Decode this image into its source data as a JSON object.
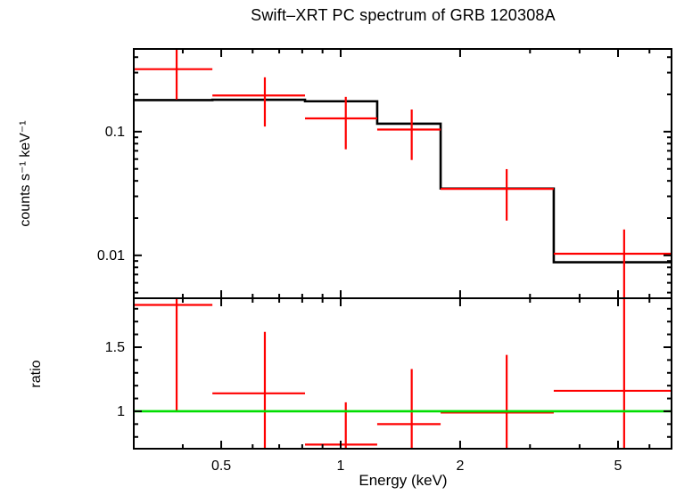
{
  "title": "Swift–XRT PC spectrum of GRB 120308A",
  "chart_data": {
    "type": "line",
    "subtype": "x-ray-spectrum-with-ratio-panel",
    "title": "Swift–XRT PC spectrum of GRB 120308A",
    "xlabel": "Energy (keV)",
    "x_scale": "log",
    "x_range": [
      0.301,
      6.82
    ],
    "x_major_ticks": [
      {
        "value": 0.5,
        "label": "0.5"
      },
      {
        "value": 1,
        "label": "1"
      },
      {
        "value": 2,
        "label": "2"
      },
      {
        "value": 5,
        "label": "5"
      }
    ],
    "x_minor_ticks": [
      0.4,
      0.6,
      0.7,
      0.8,
      0.9,
      3,
      4,
      6
    ],
    "colors": {
      "data": "#ff0000",
      "model": "#000000",
      "reference_line": "#00dd00",
      "axes": "#000000",
      "background": "#ffffff"
    },
    "panels": [
      {
        "name": "spectrum",
        "ylabel": "counts s⁻¹ keV⁻¹",
        "y_scale": "log",
        "y_range": [
          0.0045,
          0.466
        ],
        "y_major_ticks": [
          {
            "value": 0.1,
            "label": "0.1"
          },
          {
            "value": 0.01,
            "label": "0.01"
          }
        ],
        "y_minor_ticks": [
          0.4,
          0.3,
          0.2,
          0.09,
          0.08,
          0.07,
          0.06,
          0.05,
          0.04,
          0.03,
          0.02,
          0.009,
          0.008,
          0.007,
          0.006,
          0.005
        ]
      },
      {
        "name": "ratio",
        "ylabel": "ratio",
        "y_scale": "linear",
        "y_range": [
          0.708,
          1.882
        ],
        "y_major_ticks": [
          {
            "value": 1,
            "label": "1"
          },
          {
            "value": 1.5,
            "label": "1.5"
          }
        ],
        "y_minor_ticks": [
          0.8,
          0.9,
          1.1,
          1.2,
          1.3,
          1.4,
          1.6,
          1.7,
          1.8
        ],
        "reference_line_y": 1
      }
    ],
    "bins": [
      {
        "e_lo": 0.3,
        "e_hi": 0.475,
        "e_center": 0.386,
        "rate": 0.32,
        "rate_err_lo": 0.182,
        "rate_err_hi": 0.466,
        "rate_err_hi_clipped": true,
        "model": 0.18,
        "ratio": 1.83,
        "ratio_err_lo": 1.0,
        "ratio_err_hi": 1.88,
        "ratio_err_hi_clipped": true
      },
      {
        "e_lo": 0.475,
        "e_hi": 0.813,
        "e_center": 0.644,
        "rate": 0.196,
        "rate_err_lo": 0.11,
        "rate_err_hi": 0.275,
        "model": 0.181,
        "ratio": 1.14,
        "ratio_err_lo": 0.71,
        "ratio_err_lo_clipped": true,
        "ratio_err_hi": 1.62
      },
      {
        "e_lo": 0.813,
        "e_hi": 1.236,
        "e_center": 1.03,
        "rate": 0.128,
        "rate_err_lo": 0.072,
        "rate_err_hi": 0.191,
        "model": 0.176,
        "ratio": 0.74,
        "ratio_err_lo": 0.71,
        "ratio_err_lo_clipped": true,
        "ratio_err_hi": 1.07
      },
      {
        "e_lo": 1.236,
        "e_hi": 1.786,
        "e_center": 1.51,
        "rate": 0.104,
        "rate_err_lo": 0.059,
        "rate_err_hi": 0.151,
        "model": 0.116,
        "ratio": 0.9,
        "ratio_err_lo": 0.71,
        "ratio_err_lo_clipped": true,
        "ratio_err_hi": 1.33
      },
      {
        "e_lo": 1.786,
        "e_hi": 3.443,
        "e_center": 2.62,
        "rate": 0.0345,
        "rate_err_lo": 0.0191,
        "rate_err_hi": 0.0498,
        "model": 0.0347,
        "ratio": 0.99,
        "ratio_err_lo": 0.71,
        "ratio_err_lo_clipped": true,
        "ratio_err_hi": 1.44
      },
      {
        "e_lo": 3.443,
        "e_hi": 6.82,
        "e_center": 5.18,
        "rate": 0.0103,
        "rate_err_lo": 0.0045,
        "rate_err_lo_clipped": true,
        "rate_err_hi": 0.0162,
        "model": 0.0088,
        "ratio": 1.16,
        "ratio_err_lo": 0.71,
        "ratio_err_lo_clipped": true,
        "ratio_err_hi": 1.88,
        "ratio_err_hi_clipped": true
      }
    ]
  }
}
